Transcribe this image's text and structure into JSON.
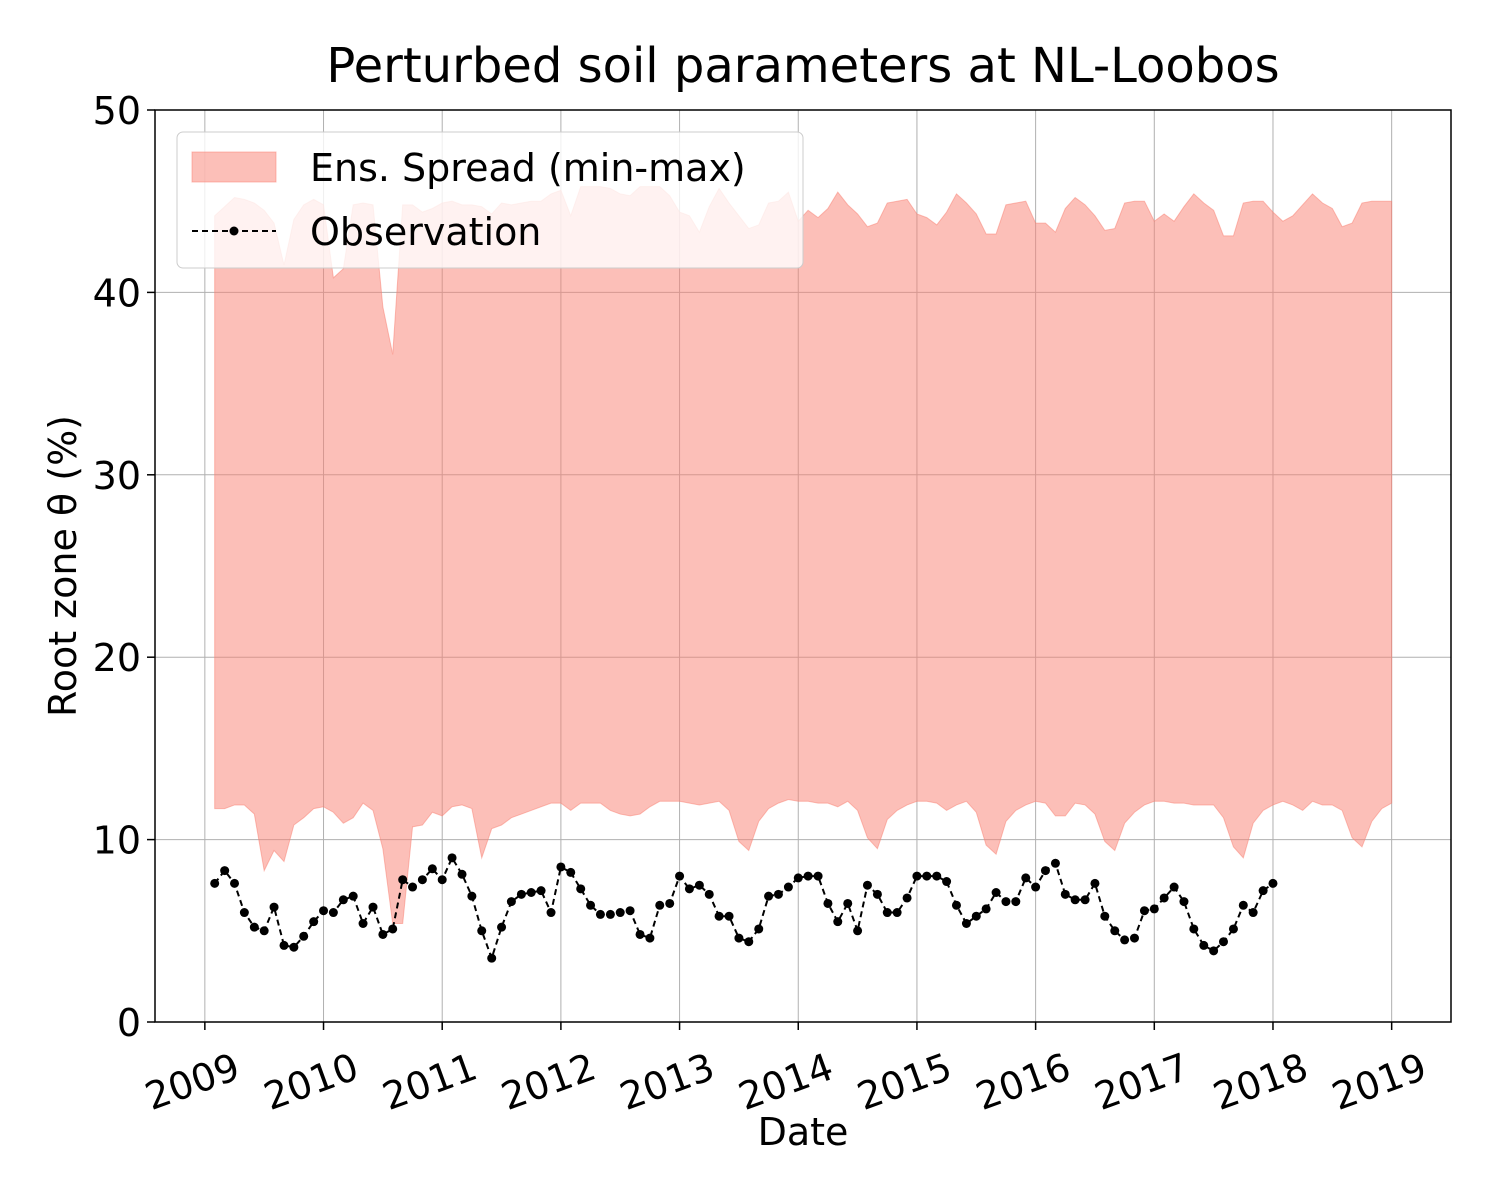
{
  "chart_data": {
    "type": "band-line",
    "title": "Perturbed soil parameters at NL-Loobos",
    "xlabel": "Date",
    "ylabel": "Root zone θ  (%)",
    "xlim": [
      2008.58,
      2019.5
    ],
    "ylim": [
      0,
      50
    ],
    "xticks": [
      2009,
      2010,
      2011,
      2012,
      2013,
      2014,
      2015,
      2016,
      2017,
      2018,
      2019
    ],
    "yticks": [
      0,
      10,
      20,
      30,
      40,
      50
    ],
    "grid": true,
    "legend": "upper left",
    "series": [
      {
        "name": "Ens. Spread (min-max)",
        "kind": "band",
        "color": "#fa8072",
        "alpha": 0.5,
        "x": [
          2009.083,
          2009.167,
          2009.25,
          2009.333,
          2009.417,
          2009.5,
          2009.583,
          2009.667,
          2009.75,
          2009.833,
          2009.917,
          2010,
          2010.083,
          2010.167,
          2010.25,
          2010.333,
          2010.417,
          2010.5,
          2010.583,
          2010.667,
          2010.75,
          2010.833,
          2010.917,
          2011,
          2011.083,
          2011.167,
          2011.25,
          2011.333,
          2011.417,
          2011.5,
          2011.583,
          2011.667,
          2011.75,
          2011.833,
          2011.917,
          2012,
          2012.083,
          2012.167,
          2012.25,
          2012.333,
          2012.417,
          2012.5,
          2012.583,
          2012.667,
          2012.75,
          2012.833,
          2012.917,
          2013,
          2013.083,
          2013.167,
          2013.25,
          2013.333,
          2013.417,
          2013.5,
          2013.583,
          2013.667,
          2013.75,
          2013.833,
          2013.917,
          2014,
          2014.083,
          2014.167,
          2014.25,
          2014.333,
          2014.417,
          2014.5,
          2014.583,
          2014.667,
          2014.75,
          2014.833,
          2014.917,
          2015,
          2015.083,
          2015.167,
          2015.25,
          2015.333,
          2015.417,
          2015.5,
          2015.583,
          2015.667,
          2015.75,
          2015.833,
          2015.917,
          2016,
          2016.083,
          2016.167,
          2016.25,
          2016.333,
          2016.417,
          2016.5,
          2016.583,
          2016.667,
          2016.75,
          2016.833,
          2016.917,
          2017,
          2017.083,
          2017.167,
          2017.25,
          2017.333,
          2017.417,
          2017.5,
          2017.583,
          2017.667,
          2017.75,
          2017.833,
          2017.917,
          2018,
          2018.083,
          2018.167,
          2018.25,
          2018.333,
          2018.417,
          2018.5,
          2018.583,
          2018.667,
          2018.75,
          2018.833,
          2018.917,
          2019
        ],
        "lower": [
          11.7,
          11.7,
          11.9,
          11.9,
          11.4,
          8.3,
          9.4,
          8.8,
          10.8,
          11.2,
          11.7,
          11.8,
          11.5,
          10.9,
          11.2,
          12.0,
          11.6,
          9.5,
          5.4,
          5.4,
          10.7,
          10.8,
          11.5,
          11.3,
          11.8,
          11.9,
          11.7,
          9.0,
          10.6,
          10.8,
          11.2,
          11.4,
          11.6,
          11.8,
          12.0,
          12.0,
          11.6,
          12.0,
          12.0,
          12.0,
          11.6,
          11.4,
          11.3,
          11.4,
          11.8,
          12.1,
          12.1,
          12.1,
          12.0,
          11.9,
          12.0,
          12.1,
          11.6,
          9.9,
          9.4,
          11.0,
          11.7,
          12.0,
          12.2,
          12.1,
          12.1,
          12.0,
          12.0,
          11.8,
          12.1,
          11.6,
          10.1,
          9.5,
          11.1,
          11.6,
          11.9,
          12.1,
          12.1,
          12.0,
          11.6,
          11.9,
          12.1,
          11.5,
          9.7,
          9.2,
          11.0,
          11.6,
          11.9,
          12.1,
          12.0,
          11.3,
          11.3,
          12.0,
          11.9,
          11.4,
          9.9,
          9.4,
          10.9,
          11.5,
          11.9,
          12.1,
          12.1,
          12.0,
          12.0,
          11.9,
          11.9,
          11.9,
          11.2,
          9.6,
          9.0,
          10.9,
          11.6,
          11.9,
          12.1,
          11.9,
          11.6,
          12.1,
          11.9,
          11.9,
          11.6,
          10.1,
          9.6,
          11.0,
          11.7,
          12.0
        ],
        "upper": [
          44.2,
          44.7,
          45.2,
          45.1,
          44.9,
          44.5,
          43.8,
          41.5,
          44.0,
          44.8,
          45.1,
          44.8,
          40.8,
          41.3,
          44.8,
          44.9,
          44.8,
          39.2,
          36.6,
          44.8,
          44.8,
          44.4,
          44.6,
          44.9,
          45.0,
          44.8,
          44.8,
          44.7,
          44.3,
          44.9,
          44.8,
          44.9,
          45.0,
          45.0,
          45.4,
          45.6,
          44.2,
          45.8,
          45.8,
          45.8,
          45.7,
          45.4,
          45.3,
          45.8,
          45.8,
          45.8,
          45.3,
          44.4,
          44.2,
          43.3,
          44.7,
          45.7,
          44.9,
          44.2,
          43.5,
          43.7,
          44.9,
          45.0,
          45.5,
          43.9,
          44.5,
          44.1,
          44.6,
          45.5,
          44.8,
          44.3,
          43.6,
          43.8,
          44.9,
          45.0,
          45.1,
          44.3,
          44.1,
          43.7,
          44.4,
          45.4,
          44.9,
          44.3,
          43.2,
          43.2,
          44.8,
          44.9,
          45.0,
          43.8,
          43.8,
          43.3,
          44.6,
          45.2,
          44.8,
          44.2,
          43.4,
          43.5,
          44.9,
          45.0,
          45.0,
          43.9,
          44.3,
          43.9,
          44.7,
          45.4,
          44.9,
          44.5,
          43.1,
          43.1,
          44.9,
          45.0,
          45.0,
          44.4,
          43.9,
          44.2,
          44.8,
          45.4,
          44.9,
          44.6,
          43.6,
          43.8,
          44.9,
          45.0,
          45.0,
          45.0
        ]
      },
      {
        "name": "Observation",
        "kind": "line",
        "color": "#000000",
        "x": [
          2009.083,
          2009.167,
          2009.25,
          2009.333,
          2009.417,
          2009.5,
          2009.583,
          2009.667,
          2009.75,
          2009.833,
          2009.917,
          2010,
          2010.083,
          2010.167,
          2010.25,
          2010.333,
          2010.417,
          2010.5,
          2010.583,
          2010.667,
          2010.75,
          2010.833,
          2010.917,
          2011,
          2011.083,
          2011.167,
          2011.25,
          2011.333,
          2011.417,
          2011.5,
          2011.583,
          2011.667,
          2011.75,
          2011.833,
          2011.917,
          2012,
          2012.083,
          2012.167,
          2012.25,
          2012.333,
          2012.417,
          2012.5,
          2012.583,
          2012.667,
          2012.75,
          2012.833,
          2012.917,
          2013,
          2013.083,
          2013.167,
          2013.25,
          2013.333,
          2013.417,
          2013.5,
          2013.583,
          2013.667,
          2013.75,
          2013.833,
          2013.917,
          2014,
          2014.083,
          2014.167,
          2014.25,
          2014.333,
          2014.417,
          2014.5,
          2014.583,
          2014.667,
          2014.75,
          2014.833,
          2014.917,
          2015,
          2015.083,
          2015.167,
          2015.25,
          2015.333,
          2015.417,
          2015.5,
          2015.583,
          2015.667,
          2015.75,
          2015.833,
          2015.917,
          2016,
          2016.083,
          2016.167,
          2016.25,
          2016.333,
          2016.417,
          2016.5,
          2016.583,
          2016.667,
          2016.75,
          2016.833,
          2016.917,
          2017,
          2017.083,
          2017.167,
          2017.25,
          2017.333,
          2017.417,
          2017.5,
          2017.583,
          2017.667,
          2017.75,
          2017.833,
          2017.917,
          2018
        ],
        "values": [
          7.6,
          8.3,
          7.6,
          6.0,
          5.2,
          5.0,
          6.3,
          4.2,
          4.1,
          4.7,
          5.5,
          6.1,
          6.0,
          6.7,
          6.9,
          5.4,
          6.3,
          4.8,
          5.1,
          7.8,
          7.4,
          7.8,
          8.4,
          7.8,
          9.0,
          8.1,
          6.9,
          5.0,
          3.5,
          5.2,
          6.6,
          7.0,
          7.1,
          7.2,
          6.0,
          8.5,
          8.2,
          7.3,
          6.4,
          5.9,
          5.9,
          6.0,
          6.1,
          4.8,
          4.6,
          6.4,
          6.5,
          8.0,
          7.3,
          7.5,
          7.0,
          5.8,
          5.8,
          4.6,
          4.4,
          5.1,
          6.9,
          7.0,
          7.4,
          7.9,
          8.0,
          8.0,
          6.5,
          5.5,
          6.5,
          5.0,
          7.5,
          7.0,
          6.0,
          6.0,
          6.8,
          8.0,
          8.0,
          8.0,
          7.7,
          6.4,
          5.4,
          5.8,
          6.2,
          7.1,
          6.6,
          6.6,
          7.9,
          7.4,
          8.3,
          8.7,
          7.0,
          6.7,
          6.7,
          7.6,
          5.8,
          5.0,
          4.5,
          4.6,
          6.1,
          6.2,
          6.8,
          7.4,
          6.6,
          5.1,
          4.2,
          3.9,
          4.4,
          5.1,
          6.4,
          6.0,
          7.2,
          7.6
        ]
      }
    ]
  }
}
